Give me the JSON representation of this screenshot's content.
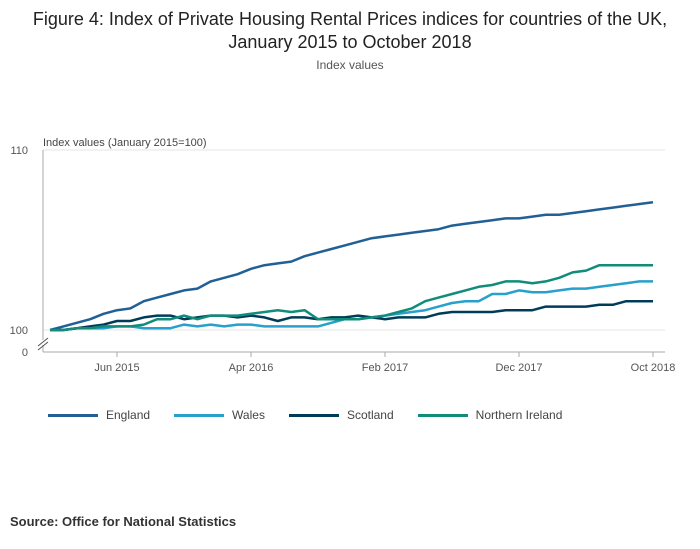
{
  "title": "Figure 4: Index of Private Housing Rental Prices indices for countries of the UK, January 2015 to October 2018",
  "subtitle": "Index values",
  "source": "Source: Office for National Statistics",
  "chart_data": {
    "type": "line",
    "ylabel": "Index values (January 2015=100)",
    "ylim": [
      100,
      110
    ],
    "y_ticks": [
      "110",
      "100",
      "0"
    ],
    "axis_break": true,
    "x_tick_labels": [
      "Jun 2015",
      "Apr 2016",
      "Feb 2017",
      "Dec 2017",
      "Oct 2018"
    ],
    "x_start": "Jan 2015",
    "x_end": "Oct 2018",
    "grid": true,
    "legend_position": "bottom",
    "series": [
      {
        "name": "England",
        "color": "#206095",
        "values": [
          100.0,
          100.2,
          100.4,
          100.6,
          100.9,
          101.1,
          101.2,
          101.6,
          101.8,
          102.0,
          102.2,
          102.3,
          102.7,
          102.9,
          103.1,
          103.4,
          103.6,
          103.7,
          103.8,
          104.1,
          104.3,
          104.5,
          104.7,
          104.9,
          105.1,
          105.2,
          105.3,
          105.4,
          105.5,
          105.6,
          105.8,
          105.9,
          106.0,
          106.1,
          106.2,
          106.2,
          106.3,
          106.4,
          106.4,
          106.5,
          106.6,
          106.7,
          106.8,
          106.9,
          107.0,
          107.1
        ]
      },
      {
        "name": "Wales",
        "color": "#27a0cc",
        "values": [
          100.0,
          100.0,
          100.1,
          100.1,
          100.1,
          100.2,
          100.2,
          100.1,
          100.1,
          100.1,
          100.3,
          100.2,
          100.3,
          100.2,
          100.3,
          100.3,
          100.2,
          100.2,
          100.2,
          100.2,
          100.2,
          100.4,
          100.6,
          100.6,
          100.7,
          100.8,
          100.9,
          101.0,
          101.1,
          101.3,
          101.5,
          101.6,
          101.6,
          102.0,
          102.0,
          102.2,
          102.1,
          102.1,
          102.2,
          102.3,
          102.3,
          102.4,
          102.5,
          102.6,
          102.7,
          102.7
        ]
      },
      {
        "name": "Scotland",
        "color": "#003c57",
        "values": [
          100.0,
          100.0,
          100.1,
          100.2,
          100.3,
          100.5,
          100.5,
          100.7,
          100.8,
          100.8,
          100.6,
          100.7,
          100.8,
          100.8,
          100.7,
          100.8,
          100.7,
          100.5,
          100.7,
          100.7,
          100.6,
          100.7,
          100.7,
          100.8,
          100.7,
          100.6,
          100.7,
          100.7,
          100.7,
          100.9,
          101.0,
          101.0,
          101.0,
          101.0,
          101.1,
          101.1,
          101.1,
          101.3,
          101.3,
          101.3,
          101.3,
          101.4,
          101.4,
          101.6,
          101.6,
          101.6
        ]
      },
      {
        "name": "Northern Ireland",
        "color": "#118c7b",
        "values": [
          100.0,
          100.0,
          100.1,
          100.1,
          100.2,
          100.2,
          100.2,
          100.3,
          100.6,
          100.6,
          100.8,
          100.6,
          100.8,
          100.8,
          100.8,
          100.9,
          101.0,
          101.1,
          101.0,
          101.1,
          100.6,
          100.6,
          100.6,
          100.6,
          100.7,
          100.8,
          101.0,
          101.2,
          101.6,
          101.8,
          102.0,
          102.2,
          102.4,
          102.5,
          102.7,
          102.7,
          102.6,
          102.7,
          102.9,
          103.2,
          103.3,
          103.6,
          103.6,
          103.6,
          103.6,
          103.6
        ]
      }
    ]
  }
}
